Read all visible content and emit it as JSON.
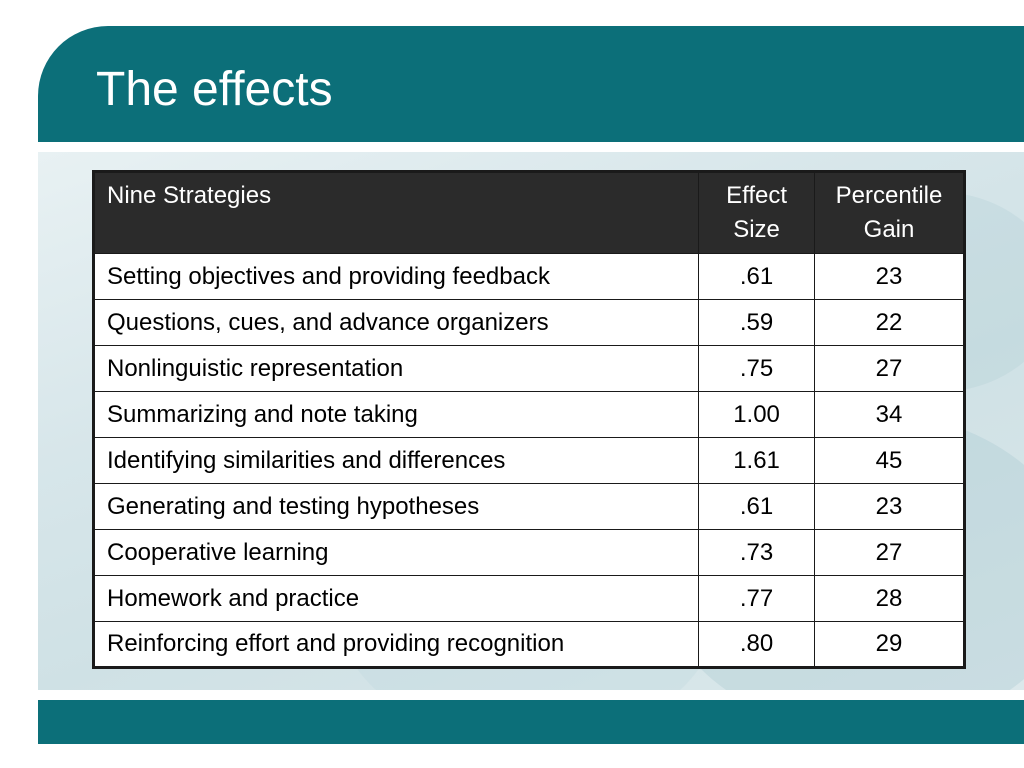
{
  "slide": {
    "title": "The effects"
  },
  "table": {
    "headers": {
      "strategy": "Nine Strategies",
      "effect_size_line1": "Effect",
      "effect_size_line2": "Size",
      "percentile_gain_line1": "Percentile",
      "percentile_gain_line2": "Gain"
    },
    "rows": [
      {
        "strategy": "Setting objectives and providing feedback",
        "effect_size": ".61",
        "percentile_gain": "23"
      },
      {
        "strategy": "Questions, cues, and advance organizers",
        "effect_size": ".59",
        "percentile_gain": "22"
      },
      {
        "strategy": "Nonlinguistic representation",
        "effect_size": ".75",
        "percentile_gain": "27"
      },
      {
        "strategy": "Summarizing and note taking",
        "effect_size": "1.00",
        "percentile_gain": "34"
      },
      {
        "strategy": "Identifying similarities and differences",
        "effect_size": "1.61",
        "percentile_gain": "45"
      },
      {
        "strategy": "Generating and testing hypotheses",
        "effect_size": ".61",
        "percentile_gain": "23"
      },
      {
        "strategy": "Cooperative learning",
        "effect_size": ".73",
        "percentile_gain": "27"
      },
      {
        "strategy": "Homework and practice",
        "effect_size": ".77",
        "percentile_gain": "28"
      },
      {
        "strategy": "Reinforcing effort and providing recognition",
        "effect_size": ".80",
        "percentile_gain": "29"
      }
    ]
  },
  "colors": {
    "accent": "#0c6f79",
    "header_background": "#2b2b2b",
    "header_text": "#ffffff"
  }
}
